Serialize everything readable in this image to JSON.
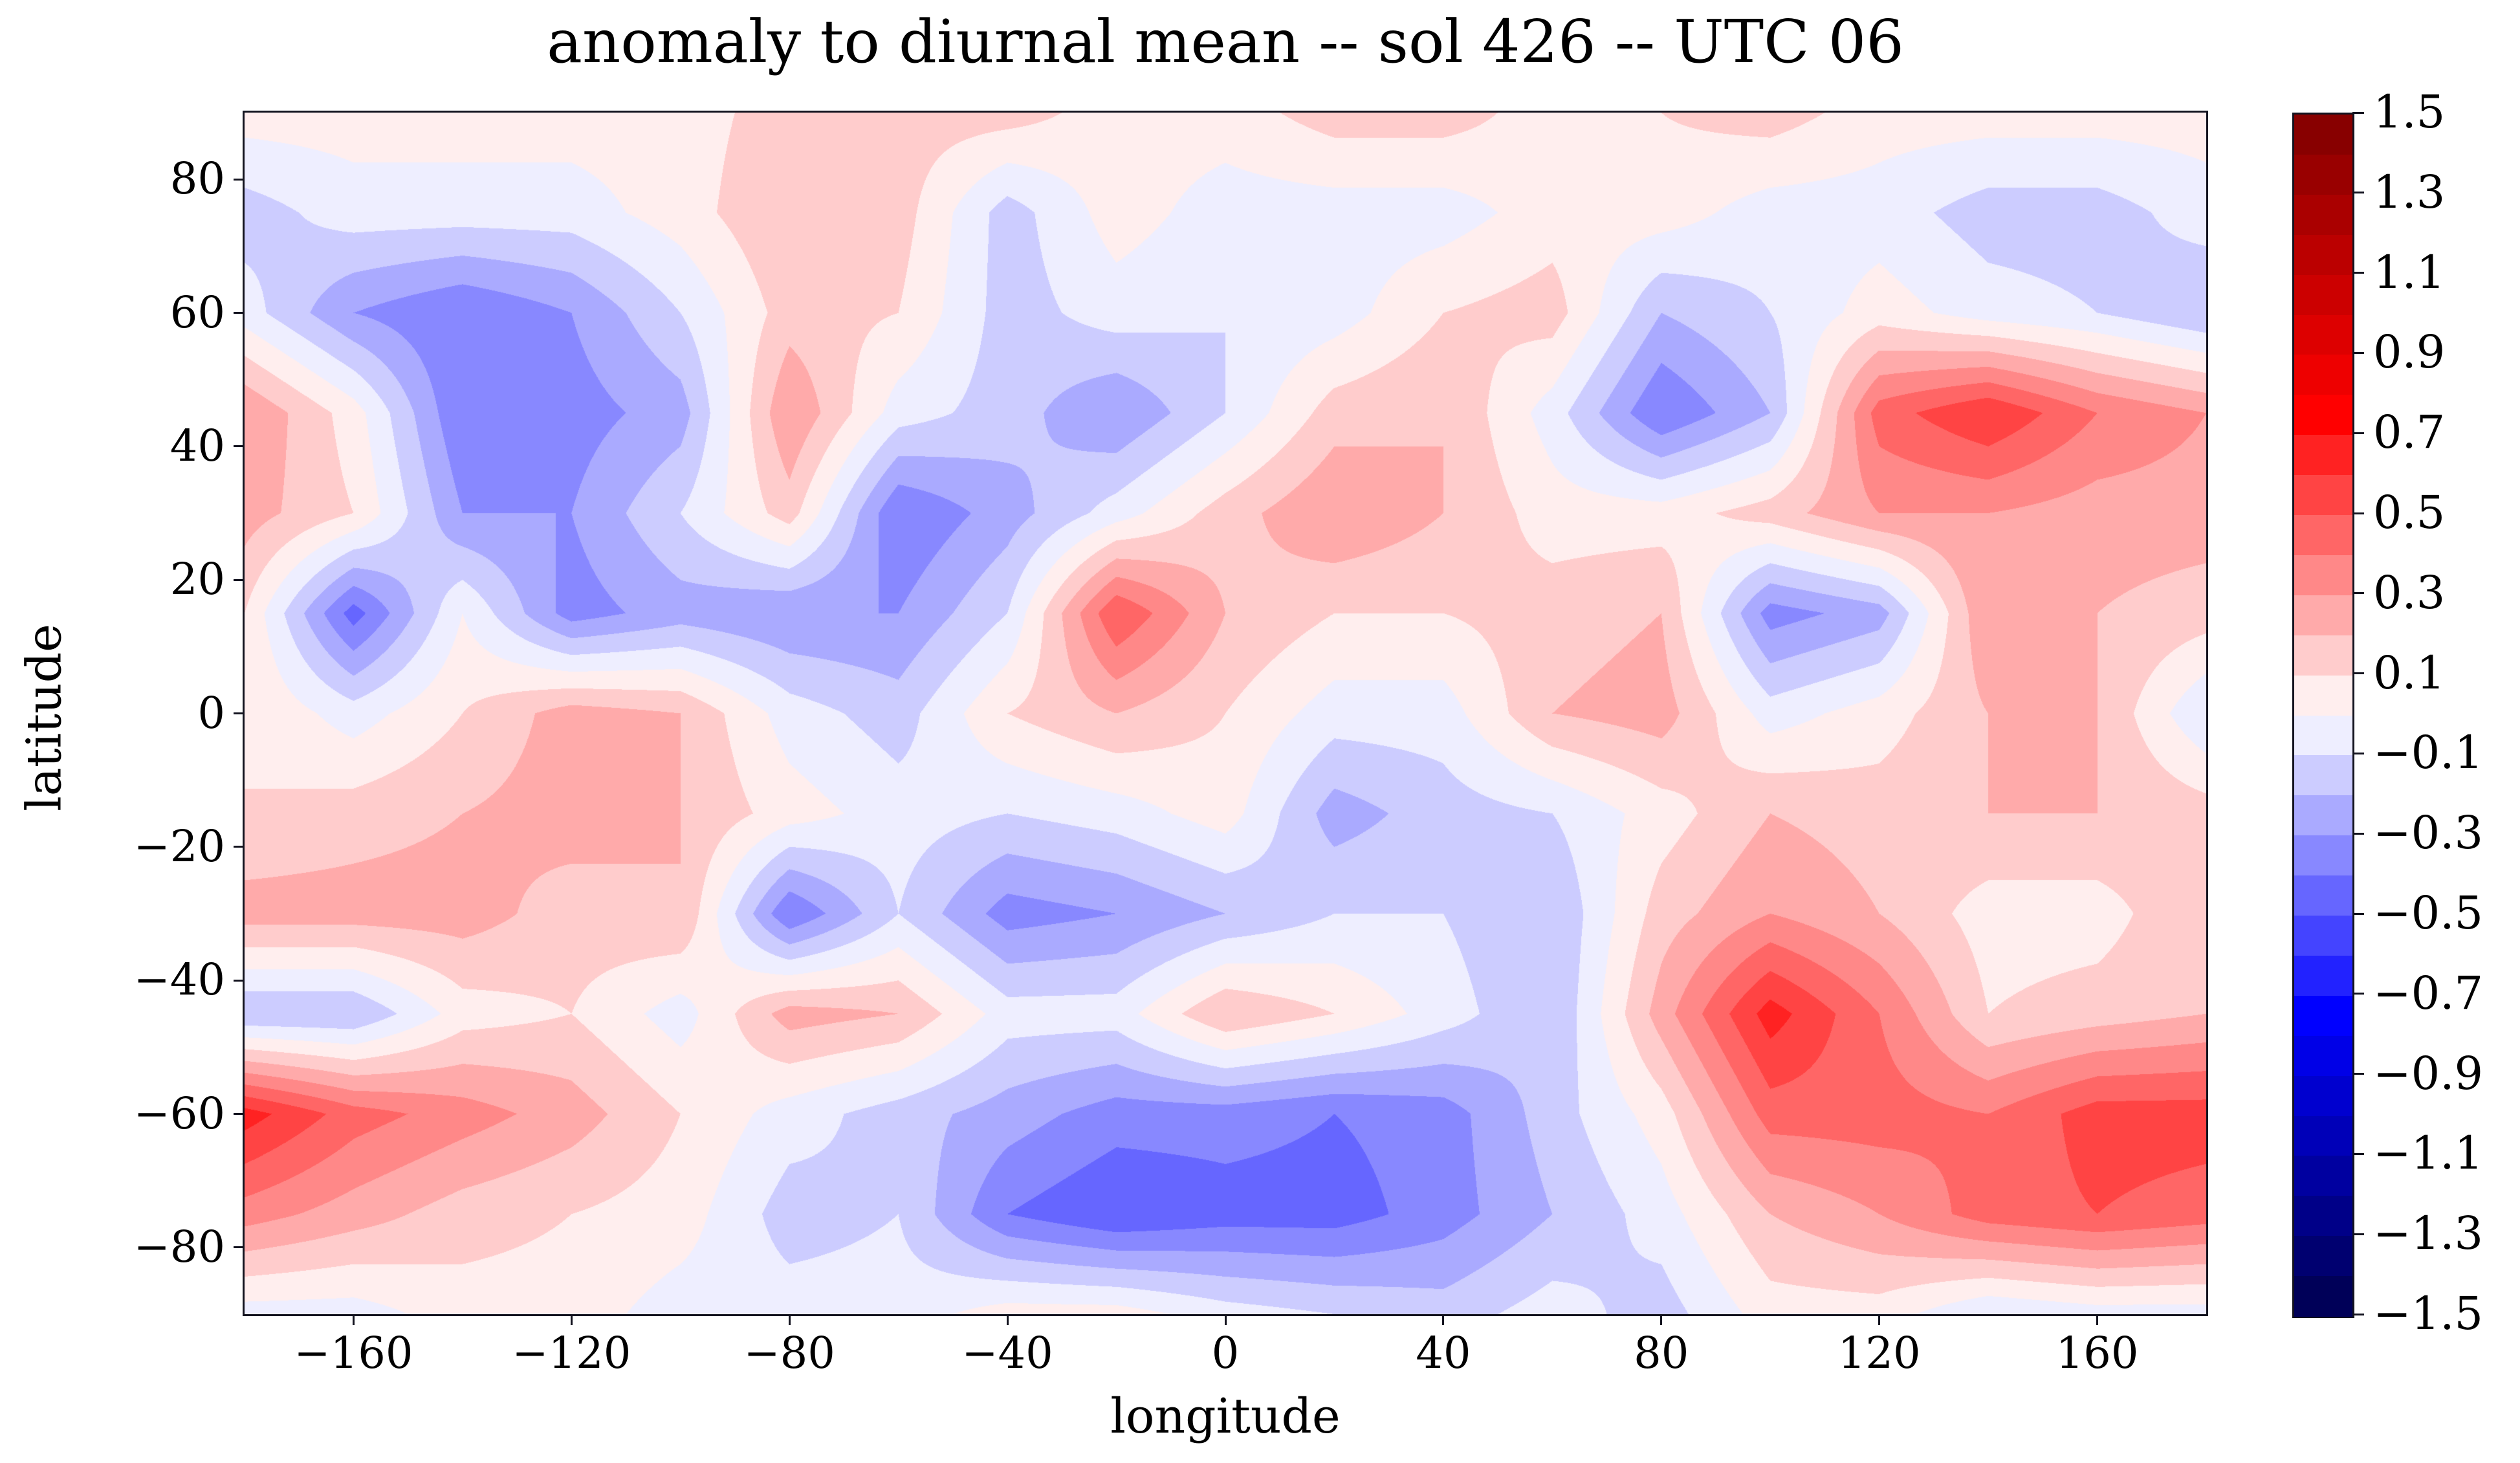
{
  "title": "anomaly to diurnal mean -- sol 426 -- UTC 06",
  "axes": {
    "xlabel": "longitude",
    "ylabel": "latitude",
    "x_ticks": [
      {
        "value": -160,
        "label": "−160"
      },
      {
        "value": -120,
        "label": "−120"
      },
      {
        "value": -80,
        "label": "−80"
      },
      {
        "value": -40,
        "label": "−40"
      },
      {
        "value": 0,
        "label": "0"
      },
      {
        "value": 40,
        "label": "40"
      },
      {
        "value": 80,
        "label": "80"
      },
      {
        "value": 120,
        "label": "120"
      },
      {
        "value": 160,
        "label": "160"
      }
    ],
    "y_ticks": [
      {
        "value": 80,
        "label": "80"
      },
      {
        "value": 60,
        "label": "60"
      },
      {
        "value": 40,
        "label": "40"
      },
      {
        "value": 20,
        "label": "20"
      },
      {
        "value": 0,
        "label": "0"
      },
      {
        "value": -20,
        "label": "−20"
      },
      {
        "value": -40,
        "label": "−40"
      },
      {
        "value": -60,
        "label": "−60"
      },
      {
        "value": -80,
        "label": "−80"
      }
    ],
    "xlim": [
      -180,
      180
    ],
    "ylim": [
      -90,
      90
    ],
    "spine_color": "#13131f"
  },
  "colorbar": {
    "tick_labels": [
      "1.5",
      "1.3",
      "1.1",
      "0.9",
      "0.7",
      "0.5",
      "0.3",
      "0.1",
      "−0.1",
      "−0.3",
      "−0.5",
      "−0.7",
      "−0.9",
      "−1.1",
      "−1.3",
      "−1.5"
    ],
    "tick_values": [
      1.5,
      1.3,
      1.1,
      0.9,
      0.7,
      0.5,
      0.3,
      0.1,
      -0.1,
      -0.3,
      -0.5,
      -0.7,
      -0.9,
      -1.1,
      -1.3,
      -1.5
    ],
    "min": -1.5,
    "max": 1.5,
    "band_step": 0.1,
    "band_colors_low_to_high": [
      "#000058",
      "#000070",
      "#000088",
      "#0000A0",
      "#0000B8",
      "#0000CF",
      "#0000E7",
      "#0000FF",
      "#2222FF",
      "#4444FF",
      "#6666FF",
      "#8888FF",
      "#AAAAFF",
      "#CCCCFF",
      "#EEEEFF",
      "#FFEEEE",
      "#FFCCCC",
      "#FFAAAA",
      "#FF8888",
      "#FF6666",
      "#FF4444",
      "#FF2222",
      "#FF0000",
      "#EE0000",
      "#DD0000",
      "#CC0000",
      "#BB0000",
      "#AA0000",
      "#990000",
      "#880000"
    ]
  },
  "chart_data": {
    "type": "heatmap",
    "subtype": "filled-contour-anomaly-map",
    "title": "anomaly to diurnal mean -- sol 426 -- UTC 06",
    "xlabel": "longitude",
    "ylabel": "latitude",
    "xlim": [
      -180,
      180
    ],
    "ylim": [
      -90,
      90
    ],
    "levels": {
      "min": -1.5,
      "max": 1.5,
      "step": 0.1
    },
    "colormap": "blue-white-red (seismic-like)",
    "legend_position": "right-colorbar",
    "grid": false,
    "lon": [
      -180,
      -160,
      -140,
      -120,
      -100,
      -80,
      -60,
      -40,
      -20,
      0,
      20,
      40,
      60,
      80,
      100,
      120,
      140,
      160,
      180
    ],
    "lat": [
      90,
      75,
      60,
      45,
      30,
      15,
      0,
      -15,
      -30,
      -45,
      -60,
      -75,
      -90
    ],
    "values": [
      [
        0.05,
        0.05,
        0.05,
        0.05,
        0.05,
        0.15,
        0.15,
        0.15,
        0.05,
        0.05,
        0.15,
        0.15,
        0.05,
        0.1,
        0.15,
        0.05,
        0.05,
        0.05,
        0.05
      ],
      [
        -0.15,
        -0.05,
        -0.05,
        -0.05,
        0.05,
        0.2,
        0.15,
        -0.15,
        0.05,
        -0.05,
        -0.05,
        -0.05,
        0.05,
        0.05,
        -0.05,
        -0.05,
        -0.15,
        -0.15,
        -0.05
      ],
      [
        -0.05,
        -0.3,
        -0.4,
        -0.3,
        -0.1,
        0.15,
        0.1,
        -0.15,
        -0.05,
        -0.1,
        -0.05,
        0.1,
        0.15,
        -0.2,
        -0.1,
        0.05,
        -0.05,
        -0.1,
        -0.2
      ],
      [
        0.3,
        0.05,
        -0.4,
        -0.35,
        -0.25,
        0.3,
        -0.05,
        -0.15,
        -0.3,
        -0.1,
        0.15,
        0.2,
        -0.05,
        -0.4,
        -0.2,
        0.45,
        0.6,
        0.4,
        0.3
      ],
      [
        0.25,
        0.1,
        -0.3,
        -0.3,
        -0.1,
        0.15,
        -0.4,
        -0.25,
        -0.05,
        0.15,
        0.3,
        0.2,
        0.05,
        0.05,
        0.15,
        0.3,
        0.3,
        0.25,
        0.25
      ],
      [
        0.1,
        -0.45,
        0.0,
        -0.35,
        -0.25,
        -0.3,
        -0.3,
        -0.1,
        0.5,
        0.2,
        0.1,
        0.1,
        0.15,
        0.2,
        -0.35,
        -0.25,
        0.3,
        0.2,
        0.15
      ],
      [
        0.1,
        -0.05,
        0.1,
        0.25,
        0.2,
        -0.05,
        -0.15,
        0.1,
        0.2,
        0.1,
        -0.05,
        -0.05,
        0.2,
        0.25,
        -0.05,
        0.05,
        0.2,
        0.2,
        -0.1
      ],
      [
        0.1,
        0.15,
        0.2,
        0.25,
        0.2,
        0.05,
        -0.05,
        -0.1,
        -0.05,
        0.05,
        -0.25,
        -0.15,
        -0.1,
        0.05,
        0.2,
        0.15,
        0.2,
        0.2,
        0.15
      ],
      [
        0.25,
        0.25,
        0.25,
        0.15,
        0.2,
        -0.4,
        -0.1,
        -0.35,
        -0.3,
        -0.2,
        -0.1,
        -0.1,
        -0.2,
        0.15,
        0.3,
        0.2,
        0.05,
        0.05,
        0.2
      ],
      [
        -0.2,
        -0.2,
        0.05,
        0.1,
        -0.05,
        0.25,
        0.2,
        -0.05,
        -0.05,
        0.2,
        0.1,
        -0.05,
        -0.2,
        0.25,
        0.65,
        0.4,
        0.1,
        0.15,
        0.2
      ],
      [
        0.65,
        0.45,
        0.35,
        0.25,
        0.1,
        -0.05,
        -0.15,
        -0.25,
        -0.35,
        -0.35,
        -0.4,
        -0.35,
        -0.15,
        0.05,
        0.45,
        0.45,
        0.4,
        0.55,
        0.55
      ],
      [
        0.35,
        0.25,
        0.15,
        0.1,
        0.05,
        -0.15,
        -0.1,
        -0.4,
        -0.5,
        -0.45,
        -0.45,
        -0.35,
        -0.2,
        -0.05,
        0.2,
        0.3,
        0.45,
        0.5,
        0.45
      ],
      [
        -0.05,
        -0.05,
        0.05,
        0.05,
        -0.05,
        -0.05,
        -0.05,
        0.05,
        0.05,
        -0.05,
        -0.1,
        -0.15,
        -0.05,
        -0.15,
        0.05,
        0.05,
        -0.1,
        -0.05,
        -0.05
      ]
    ]
  }
}
